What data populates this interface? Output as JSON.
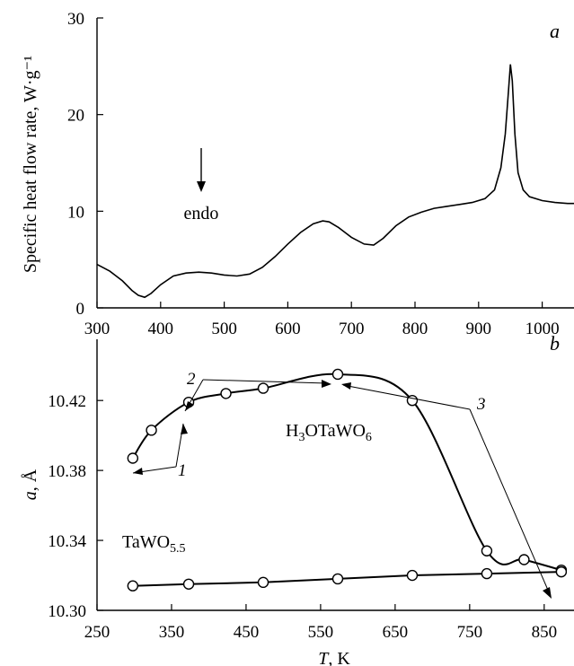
{
  "chart_data": [
    {
      "type": "line",
      "panel_label": "a",
      "ylabel": "Specific heat flow rate, W·g⁻¹",
      "xlabel": "",
      "xlim": [
        300,
        1050
      ],
      "ylim": [
        0,
        30
      ],
      "xticks": [
        "300",
        "400",
        "500",
        "600",
        "700",
        "800",
        "900",
        "1000"
      ],
      "yticks": [
        "0",
        "10",
        "20",
        "30"
      ],
      "annotation": "endo",
      "series": [
        {
          "x": [
            300,
            320,
            340,
            355,
            365,
            375,
            385,
            400,
            420,
            440,
            460,
            480,
            500,
            520,
            540,
            560,
            580,
            600,
            620,
            640,
            655,
            665,
            680,
            700,
            720,
            735,
            750,
            770,
            790,
            810,
            830,
            850,
            870,
            890,
            910,
            925,
            935,
            942,
            947,
            950,
            953,
            957,
            962,
            970,
            980,
            1000,
            1020,
            1040,
            1050
          ],
          "y": [
            4.5,
            3.8,
            2.8,
            1.8,
            1.3,
            1.1,
            1.5,
            2.4,
            3.3,
            3.6,
            3.7,
            3.6,
            3.4,
            3.3,
            3.5,
            4.2,
            5.3,
            6.6,
            7.8,
            8.7,
            9.0,
            8.9,
            8.3,
            7.3,
            6.6,
            6.5,
            7.2,
            8.5,
            9.4,
            9.9,
            10.3,
            10.5,
            10.7,
            10.9,
            11.3,
            12.2,
            14.5,
            18.0,
            22.5,
            25.2,
            23.5,
            18.0,
            14.0,
            12.2,
            11.5,
            11.1,
            10.9,
            10.8,
            10.8
          ]
        }
      ]
    },
    {
      "type": "line",
      "panel_label": "b",
      "xlabel": "T, K",
      "ylabel": "a, Å",
      "xlim": [
        250,
        890
      ],
      "ylim": [
        10.3,
        10.455
      ],
      "xticks": [
        "250",
        "350",
        "450",
        "550",
        "650",
        "750",
        "850"
      ],
      "yticks": [
        "10.30",
        "10.34",
        "10.38",
        "10.42"
      ],
      "series": [
        {
          "name": "H₃OTaWO₆",
          "x": [
            298,
            323,
            373,
            423,
            473,
            573,
            673,
            773,
            823,
            873
          ],
          "y": [
            10.387,
            10.403,
            10.419,
            10.424,
            10.427,
            10.435,
            10.42,
            10.334,
            10.329,
            10.323
          ]
        },
        {
          "name": "TaWO₅.₅",
          "x": [
            298,
            373,
            473,
            573,
            673,
            773,
            873
          ],
          "y": [
            10.314,
            10.315,
            10.316,
            10.318,
            10.32,
            10.321,
            10.322
          ]
        }
      ],
      "labels": {
        "h3o_name": "H3OTaWO6",
        "tawo_name": "TaWO5.5",
        "n1": "1",
        "n2": "2",
        "n3": "3"
      }
    }
  ]
}
